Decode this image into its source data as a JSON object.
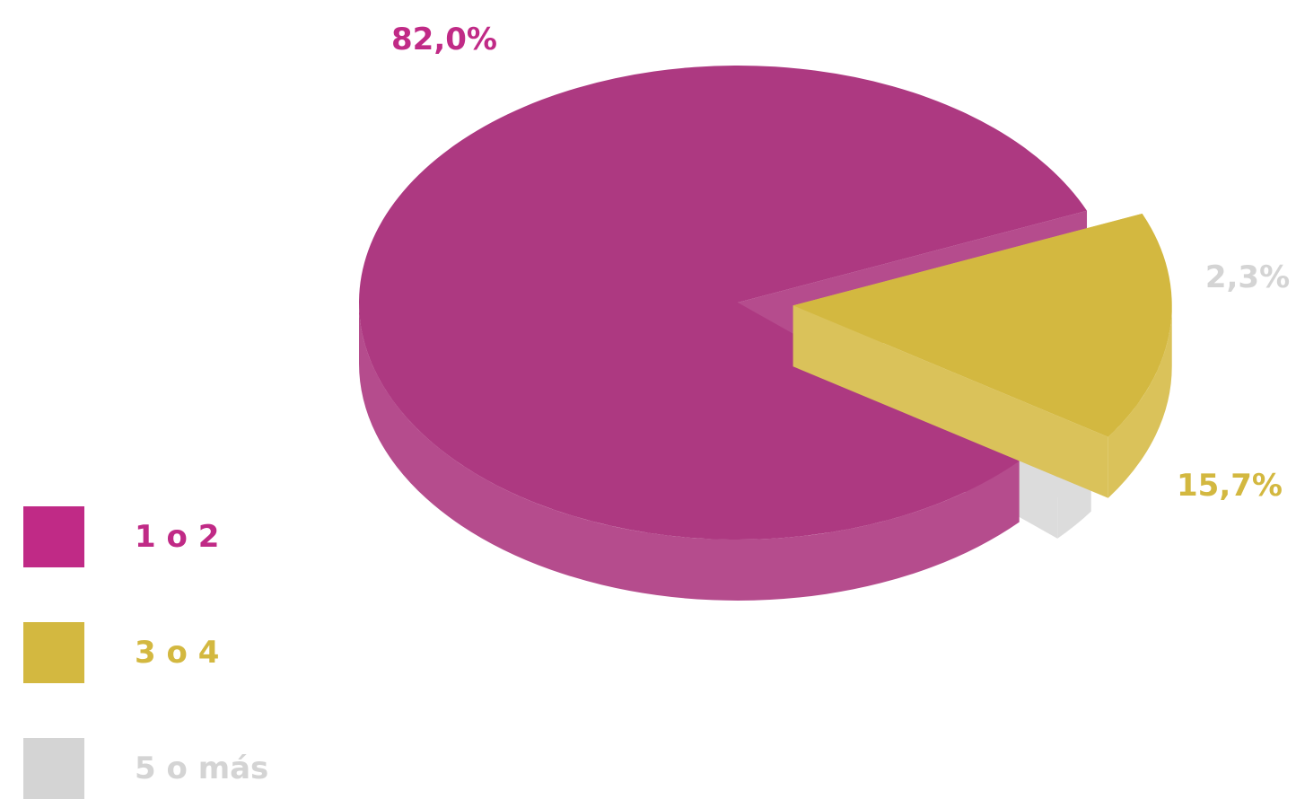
{
  "chart_data": {
    "type": "pie",
    "style": "3d-exploded",
    "slices": [
      {
        "label": "1 o 2",
        "value": 82.0,
        "value_label": "82,0%",
        "color": "#ad3981",
        "side_color": "#b54c8d",
        "legend_color": "#c02a86"
      },
      {
        "label": "3 o 4",
        "value": 15.7,
        "value_label": "15,7%",
        "color": "#d3b840",
        "side_color": "#dac25a",
        "legend_color": "#d3b840"
      },
      {
        "label": "5 o más",
        "value": 2.3,
        "value_label": "2,3%",
        "color": "#d3d3d3",
        "side_color": "#dcdcdc",
        "legend_color": "#d4d4d4"
      }
    ],
    "legend": [
      {
        "label": "1 o 2",
        "color": "#c02a86"
      },
      {
        "label": "3 o 4",
        "color": "#d3b840"
      },
      {
        "label": "5 o más",
        "color": "#d4d4d4"
      }
    ],
    "legend_position": "bottom-left"
  }
}
